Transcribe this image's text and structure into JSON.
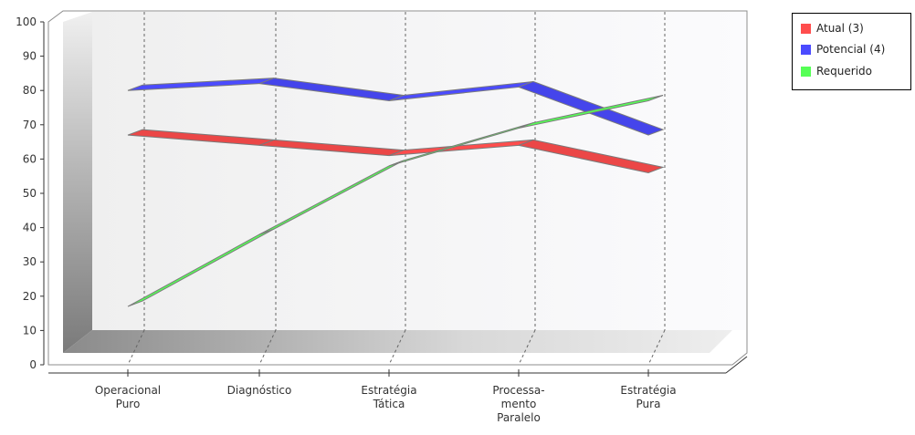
{
  "chart_data": {
    "type": "line",
    "categories": [
      "Operacional Puro",
      "Diagnóstico",
      "Estratégia Tática",
      "Processa-mento Paralelo",
      "Estratégia Pura"
    ],
    "category_label_lines": [
      [
        "Operacional",
        "Puro"
      ],
      [
        "Diagnóstico"
      ],
      [
        "Estratégia",
        "Tática"
      ],
      [
        "Processa-",
        "mento",
        "Paralelo"
      ],
      [
        "Estratégia",
        "Pura"
      ]
    ],
    "series": [
      {
        "name": "Atual (3)",
        "color": "#ff4d4d",
        "values": [
          67,
          64,
          61,
          64,
          56
        ]
      },
      {
        "name": "Potencial (4)",
        "color": "#4b4bff",
        "values": [
          80,
          82,
          77,
          81,
          67
        ]
      },
      {
        "name": "Requerido",
        "color": "#55ff55",
        "values": [
          17,
          38,
          58,
          69,
          77
        ]
      }
    ],
    "ylim": [
      0,
      100
    ],
    "yticks": [
      0,
      10,
      20,
      30,
      40,
      50,
      60,
      70,
      80,
      90,
      100
    ],
    "grid": "vertical dashed",
    "legend": "top-right",
    "style": "3d"
  }
}
